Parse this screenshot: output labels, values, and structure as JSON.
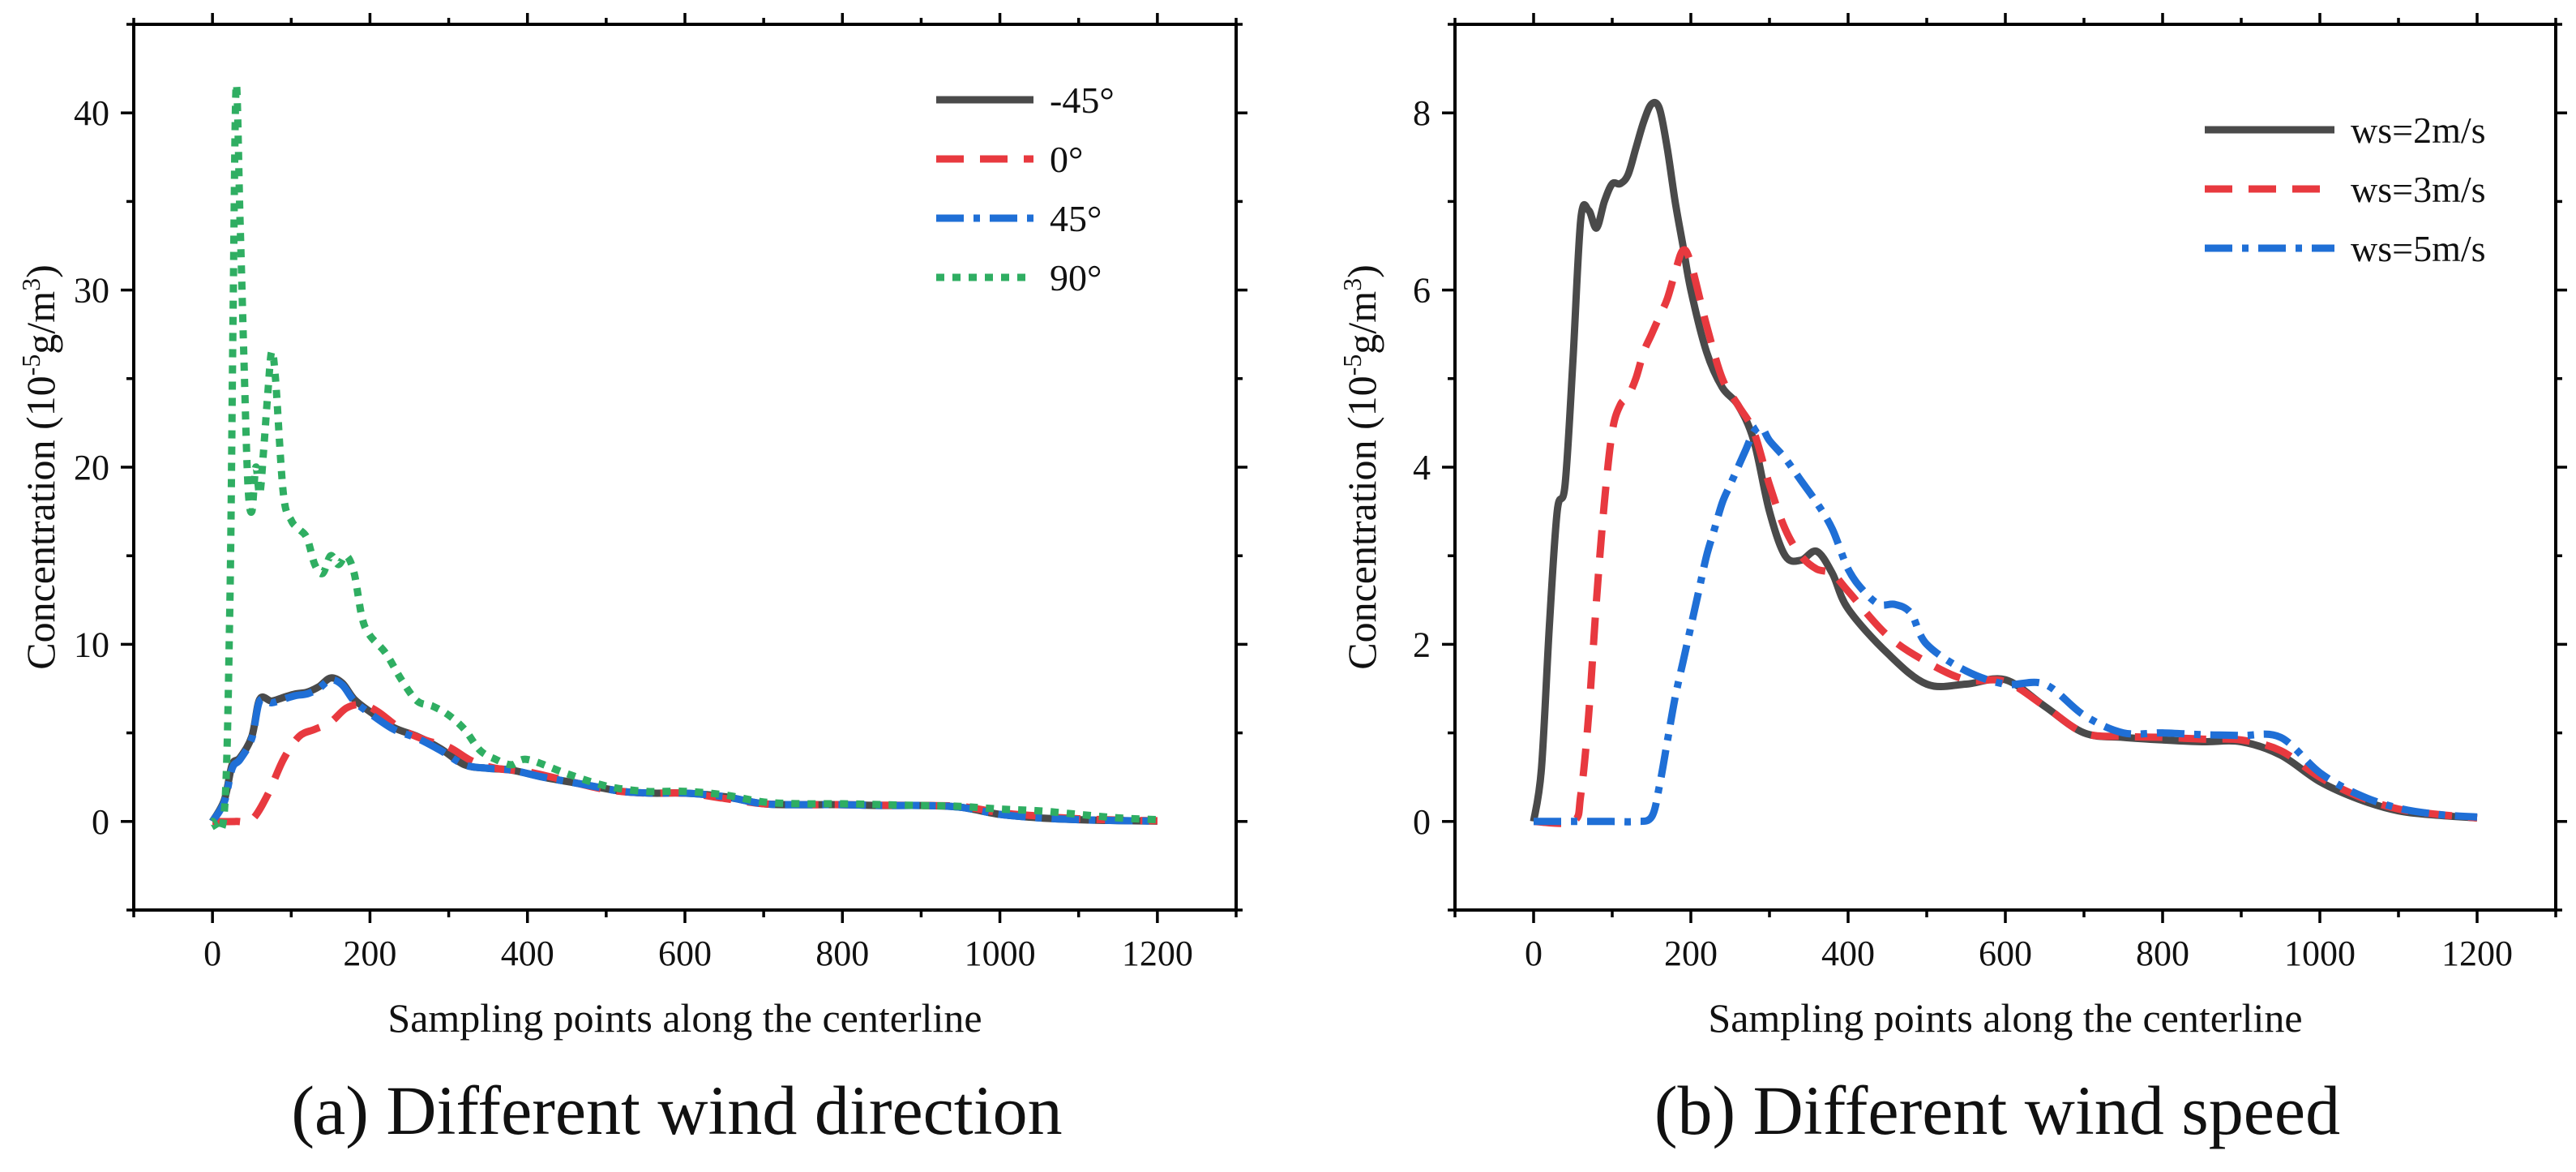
{
  "figure": {
    "colors": {
      "s1": "#4a4a4a",
      "s2": "#e8393f",
      "s3": "#1f6fd6",
      "s4": "#2fae62"
    }
  },
  "chart_data": [
    {
      "type": "line",
      "caption": "(a) Different wind direction",
      "xlabel": "Sampling points along the centerline",
      "ylabel_main": "Concentration (10",
      "ylabel_exp": "-5",
      "ylabel_unit": "g/m",
      "ylabel_exp2": "3",
      "ylabel_close": ")",
      "xlim": [
        -100,
        1300
      ],
      "ylim": [
        -5,
        45
      ],
      "xticks": [
        0,
        200,
        400,
        600,
        800,
        1000,
        1200
      ],
      "yticks": [
        0,
        10,
        20,
        30,
        40
      ],
      "legend_position": "top-right",
      "grid": false,
      "series": [
        {
          "name": "-45°",
          "color": "#4a4a4a",
          "dash": "solid",
          "x": [
            0,
            15,
            25,
            35,
            50,
            60,
            75,
            90,
            105,
            120,
            135,
            150,
            165,
            180,
            200,
            230,
            260,
            290,
            320,
            350,
            380,
            420,
            470,
            520,
            560,
            600,
            650,
            700,
            750,
            800,
            850,
            900,
            950,
            1000,
            1050,
            1100,
            1150,
            1200
          ],
          "y": [
            0,
            1.2,
            3.2,
            3.6,
            4.8,
            6.9,
            6.8,
            7.0,
            7.2,
            7.3,
            7.6,
            8.1,
            7.8,
            6.9,
            6.2,
            5.3,
            4.8,
            4.1,
            3.2,
            3.0,
            2.9,
            2.5,
            2.1,
            1.7,
            1.6,
            1.6,
            1.4,
            1.0,
            0.95,
            0.95,
            0.9,
            0.9,
            0.8,
            0.4,
            0.2,
            0.1,
            0.05,
            0.02
          ]
        },
        {
          "name": "0°",
          "color": "#e8393f",
          "dash": "dashed",
          "x": [
            0,
            30,
            50,
            70,
            90,
            110,
            130,
            150,
            170,
            190,
            210,
            240,
            270,
            300,
            330,
            360,
            400,
            450,
            500,
            550,
            600,
            650,
            700,
            750,
            800,
            850,
            900,
            950,
            1000,
            1050,
            1100,
            1150,
            1200
          ],
          "y": [
            0,
            0,
            0.1,
            1.5,
            3.5,
            4.8,
            5.2,
            5.6,
            6.4,
            6.6,
            6.2,
            5.2,
            4.6,
            4.2,
            3.4,
            3.0,
            2.8,
            2.3,
            1.8,
            1.6,
            1.6,
            1.3,
            1.0,
            0.95,
            0.95,
            0.92,
            0.9,
            0.85,
            0.5,
            0.3,
            0.15,
            0.08,
            0.04
          ]
        },
        {
          "name": "45°",
          "color": "#1f6fd6",
          "dash": "dashdot",
          "x": [
            0,
            15,
            25,
            35,
            50,
            60,
            75,
            90,
            105,
            120,
            135,
            150,
            165,
            180,
            200,
            230,
            260,
            290,
            320,
            350,
            380,
            420,
            470,
            520,
            560,
            600,
            650,
            700,
            750,
            800,
            850,
            900,
            950,
            1000,
            1050,
            1100,
            1150,
            1200
          ],
          "y": [
            0,
            1.1,
            3.0,
            3.5,
            4.7,
            6.8,
            6.7,
            6.9,
            7.1,
            7.2,
            7.5,
            8.0,
            7.7,
            6.8,
            6.1,
            5.2,
            4.7,
            4.0,
            3.2,
            3.0,
            2.9,
            2.5,
            2.1,
            1.7,
            1.6,
            1.6,
            1.4,
            1.0,
            0.95,
            0.95,
            0.9,
            0.9,
            0.8,
            0.4,
            0.2,
            0.1,
            0.05,
            0.02
          ]
        },
        {
          "name": "90°",
          "color": "#2fae62",
          "dash": "dotted",
          "x": [
            0,
            15,
            22,
            26,
            30,
            35,
            40,
            45,
            50,
            55,
            60,
            65,
            70,
            75,
            80,
            90,
            100,
            110,
            120,
            130,
            140,
            150,
            160,
            170,
            180,
            190,
            200,
            220,
            240,
            260,
            280,
            300,
            320,
            340,
            360,
            380,
            400,
            450,
            500,
            550,
            600,
            650,
            700,
            750,
            800,
            850,
            900,
            950,
            1000,
            1050,
            1100,
            1150,
            1200
          ],
          "y": [
            0,
            0.5,
            12.0,
            28.0,
            41.5,
            34.0,
            26.0,
            19.0,
            17.5,
            20.0,
            18.5,
            21.0,
            24.0,
            26.5,
            25.0,
            18.5,
            17.0,
            16.5,
            16.0,
            14.5,
            14.0,
            15.0,
            14.5,
            15.0,
            14.0,
            11.5,
            10.5,
            9.5,
            8.0,
            6.8,
            6.5,
            6.0,
            5.2,
            4.0,
            3.5,
            3.2,
            3.5,
            2.7,
            2.0,
            1.7,
            1.7,
            1.5,
            1.1,
            1.0,
            1.0,
            0.95,
            0.9,
            0.85,
            0.7,
            0.6,
            0.4,
            0.2,
            0.1
          ]
        }
      ]
    },
    {
      "type": "line",
      "caption": "(b) Different wind speed",
      "xlabel": "Sampling points along the centerline",
      "ylabel_main": "Concentration (10",
      "ylabel_exp": "-5",
      "ylabel_unit": "g/m",
      "ylabel_exp2": "3",
      "ylabel_close": ")",
      "xlim": [
        -100,
        1300
      ],
      "ylim": [
        -1,
        9
      ],
      "xticks": [
        0,
        200,
        400,
        600,
        800,
        1000,
        1200
      ],
      "yticks": [
        0,
        2,
        4,
        6,
        8
      ],
      "legend_position": "top-right",
      "grid": false,
      "series": [
        {
          "name": "ws=2m/s",
          "color": "#4a4a4a",
          "dash": "solid",
          "x": [
            0,
            10,
            20,
            30,
            40,
            50,
            60,
            70,
            80,
            90,
            100,
            110,
            120,
            130,
            140,
            150,
            160,
            170,
            180,
            190,
            200,
            220,
            240,
            260,
            280,
            300,
            320,
            340,
            360,
            380,
            400,
            450,
            500,
            550,
            600,
            650,
            700,
            750,
            800,
            850,
            900,
            950,
            1000,
            1050,
            1100,
            1150,
            1200
          ],
          "y": [
            0,
            0.6,
            2.2,
            3.5,
            3.8,
            5.2,
            6.8,
            6.9,
            6.7,
            7.0,
            7.2,
            7.2,
            7.3,
            7.6,
            7.9,
            8.1,
            8.05,
            7.6,
            7.0,
            6.5,
            6.0,
            5.3,
            4.9,
            4.7,
            4.3,
            3.5,
            3.0,
            2.95,
            3.05,
            2.8,
            2.4,
            1.9,
            1.55,
            1.55,
            1.6,
            1.3,
            1.0,
            0.95,
            0.92,
            0.9,
            0.9,
            0.75,
            0.45,
            0.25,
            0.12,
            0.07,
            0.04
          ]
        },
        {
          "name": "ws=3m/s",
          "color": "#e8393f",
          "dash": "dashed",
          "x": [
            0,
            50,
            60,
            70,
            80,
            90,
            100,
            110,
            120,
            130,
            140,
            150,
            160,
            170,
            180,
            190,
            200,
            220,
            240,
            260,
            280,
            300,
            320,
            340,
            360,
            380,
            400,
            450,
            500,
            550,
            600,
            650,
            700,
            750,
            800,
            850,
            900,
            950,
            1000,
            1050,
            1100,
            1150,
            1200
          ],
          "y": [
            0,
            0,
            0.3,
            1.2,
            2.5,
            3.6,
            4.4,
            4.7,
            4.8,
            5.0,
            5.3,
            5.5,
            5.7,
            5.9,
            6.2,
            6.45,
            6.3,
            5.6,
            5.0,
            4.7,
            4.4,
            3.8,
            3.3,
            3.0,
            2.85,
            2.8,
            2.6,
            2.1,
            1.8,
            1.6,
            1.58,
            1.3,
            1.0,
            0.96,
            0.95,
            0.93,
            0.92,
            0.8,
            0.5,
            0.28,
            0.14,
            0.08,
            0.04
          ]
        },
        {
          "name": "ws=5m/s",
          "color": "#1f6fd6",
          "dash": "dashdot",
          "x": [
            0,
            50,
            100,
            130,
            150,
            160,
            170,
            180,
            190,
            200,
            210,
            220,
            230,
            240,
            250,
            260,
            270,
            280,
            290,
            300,
            320,
            340,
            360,
            380,
            400,
            420,
            440,
            460,
            480,
            500,
            550,
            600,
            650,
            700,
            750,
            800,
            850,
            900,
            950,
            1000,
            1050,
            1100,
            1150,
            1200
          ],
          "y": [
            0,
            0,
            0,
            0,
            0.05,
            0.4,
            0.9,
            1.4,
            1.8,
            2.2,
            2.6,
            3.0,
            3.3,
            3.6,
            3.8,
            4.0,
            4.2,
            4.4,
            4.45,
            4.3,
            4.1,
            3.85,
            3.6,
            3.3,
            2.85,
            2.6,
            2.45,
            2.45,
            2.35,
            2.0,
            1.7,
            1.55,
            1.55,
            1.2,
            1.0,
            1.0,
            0.98,
            0.97,
            0.95,
            0.55,
            0.3,
            0.15,
            0.08,
            0.05
          ]
        }
      ]
    }
  ]
}
